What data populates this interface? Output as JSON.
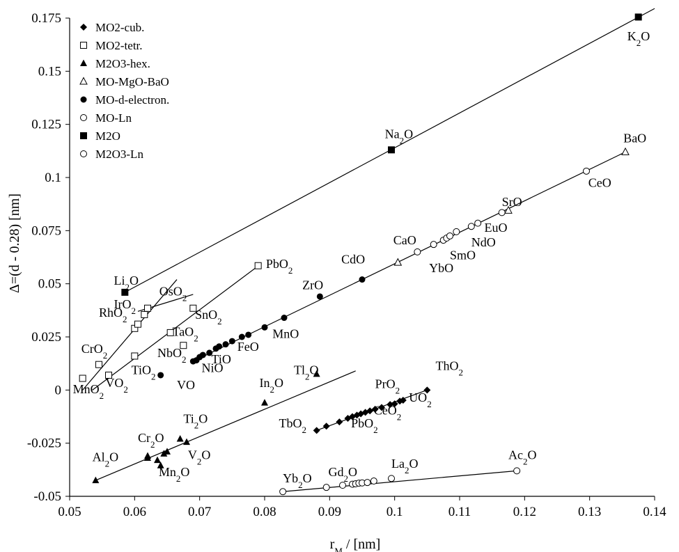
{
  "chart_data": {
    "type": "scatter",
    "xlabel": "r",
    "xlabel_sub": "M",
    "xlabel_tail": " / [nm]",
    "ylabel": "Δ=(d - 0.28)  [nm]",
    "xlim": [
      0.05,
      0.14
    ],
    "ylim": [
      -0.05,
      0.175
    ],
    "xticks": [
      0.05,
      0.06,
      0.07,
      0.08,
      0.09,
      0.1,
      0.11,
      0.12,
      0.13,
      0.14
    ],
    "xtick_labels": [
      "0.05",
      "0.06",
      "0.07",
      "0.08",
      "0.09",
      "0.1",
      "0.11",
      "0.12",
      "0.13",
      "0.14"
    ],
    "yticks": [
      -0.05,
      -0.025,
      0,
      0.025,
      0.05,
      0.075,
      0.1,
      0.125,
      0.15,
      0.175
    ],
    "ytick_labels": [
      "-0.05",
      "-0.025",
      "0",
      "0.025",
      "0.05",
      "0.075",
      "0.1",
      "0.125",
      "0.15",
      "0.175"
    ],
    "grid": false,
    "legend_position": "top-left",
    "series": [
      {
        "name": "MO2-cub.",
        "marker": "diamond",
        "points": [
          {
            "x": 0.088,
            "y": -0.019
          },
          {
            "x": 0.0895,
            "y": -0.017
          },
          {
            "x": 0.0915,
            "y": -0.015
          },
          {
            "x": 0.0928,
            "y": -0.0133
          },
          {
            "x": 0.0935,
            "y": -0.0125
          },
          {
            "x": 0.0942,
            "y": -0.0118
          },
          {
            "x": 0.0948,
            "y": -0.0112
          },
          {
            "x": 0.0955,
            "y": -0.0105
          },
          {
            "x": 0.0962,
            "y": -0.0098
          },
          {
            "x": 0.097,
            "y": -0.009
          },
          {
            "x": 0.098,
            "y": -0.0082
          },
          {
            "x": 0.0993,
            "y": -0.0068
          },
          {
            "x": 0.1,
            "y": -0.0065
          },
          {
            "x": 0.1008,
            "y": -0.0052
          },
          {
            "x": 0.1013,
            "y": -0.0048
          },
          {
            "x": 0.105,
            "y": 0.0
          }
        ],
        "line": [
          [
            0.088,
            -0.019
          ],
          [
            0.105,
            0.0
          ]
        ]
      },
      {
        "name": "MO2-tetr.",
        "marker": "open-square",
        "points": [
          {
            "x": 0.052,
            "y": 0.0055
          },
          {
            "x": 0.0545,
            "y": 0.012
          },
          {
            "x": 0.056,
            "y": 0.007
          },
          {
            "x": 0.06,
            "y": 0.016
          },
          {
            "x": 0.06,
            "y": 0.029
          },
          {
            "x": 0.0605,
            "y": 0.031
          },
          {
            "x": 0.0615,
            "y": 0.0355
          },
          {
            "x": 0.062,
            "y": 0.0385
          },
          {
            "x": 0.0655,
            "y": 0.027
          },
          {
            "x": 0.0675,
            "y": 0.021
          },
          {
            "x": 0.069,
            "y": 0.0385
          },
          {
            "x": 0.079,
            "y": 0.0585
          }
        ],
        "lines": [
          [
            [
              0.052,
              0.0
            ],
            [
              0.0665,
              0.052
            ]
          ],
          [
            [
              0.0535,
              0.0
            ],
            [
              0.0795,
              0.0595
            ]
          ],
          [
            [
              0.0605,
              0.037
            ],
            [
              0.069,
              0.045
            ]
          ]
        ]
      },
      {
        "name": "M2O3-hex.",
        "marker": "filled-triangle",
        "points": [
          {
            "x": 0.054,
            "y": -0.0425
          },
          {
            "x": 0.062,
            "y": -0.031
          },
          {
            "x": 0.062,
            "y": -0.032
          },
          {
            "x": 0.0635,
            "y": -0.033
          },
          {
            "x": 0.064,
            "y": -0.0355
          },
          {
            "x": 0.0645,
            "y": -0.03
          },
          {
            "x": 0.065,
            "y": -0.029
          },
          {
            "x": 0.067,
            "y": -0.023
          },
          {
            "x": 0.068,
            "y": -0.0245
          },
          {
            "x": 0.08,
            "y": -0.006
          },
          {
            "x": 0.088,
            "y": 0.0075
          }
        ],
        "line": [
          [
            0.054,
            -0.0425
          ],
          [
            0.094,
            0.009
          ]
        ]
      },
      {
        "name": "MO-MgO-BaO",
        "marker": "open-triangle",
        "points": [
          {
            "x": 0.1005,
            "y": 0.06
          },
          {
            "x": 0.1175,
            "y": 0.0845
          },
          {
            "x": 0.1355,
            "y": 0.112
          }
        ]
      },
      {
        "name": "MO-d-electron.",
        "marker": "filled-circle",
        "points": [
          {
            "x": 0.064,
            "y": 0.007
          },
          {
            "x": 0.069,
            "y": 0.0135
          },
          {
            "x": 0.0695,
            "y": 0.014
          },
          {
            "x": 0.07,
            "y": 0.0155
          },
          {
            "x": 0.0705,
            "y": 0.0165
          },
          {
            "x": 0.0715,
            "y": 0.0175
          },
          {
            "x": 0.0725,
            "y": 0.0195
          },
          {
            "x": 0.073,
            "y": 0.0205
          },
          {
            "x": 0.074,
            "y": 0.0215
          },
          {
            "x": 0.075,
            "y": 0.023
          },
          {
            "x": 0.0765,
            "y": 0.025
          },
          {
            "x": 0.0775,
            "y": 0.026
          },
          {
            "x": 0.08,
            "y": 0.0295
          },
          {
            "x": 0.083,
            "y": 0.034
          },
          {
            "x": 0.0885,
            "y": 0.044
          },
          {
            "x": 0.095,
            "y": 0.052
          }
        ]
      },
      {
        "name": "MO-Ln",
        "marker": "open-circle",
        "points": [
          {
            "x": 0.1035,
            "y": 0.065
          },
          {
            "x": 0.106,
            "y": 0.0685
          },
          {
            "x": 0.1075,
            "y": 0.0705
          },
          {
            "x": 0.108,
            "y": 0.0715
          },
          {
            "x": 0.1085,
            "y": 0.0725
          },
          {
            "x": 0.1095,
            "y": 0.0745
          },
          {
            "x": 0.1118,
            "y": 0.077
          },
          {
            "x": 0.1128,
            "y": 0.0785
          },
          {
            "x": 0.1165,
            "y": 0.0835
          },
          {
            "x": 0.1295,
            "y": 0.103
          }
        ],
        "line": [
          [
            0.069,
            0.0135
          ],
          [
            0.1355,
            0.112
          ]
        ]
      },
      {
        "name": "M2O",
        "marker": "filled-square",
        "points": [
          {
            "x": 0.0585,
            "y": 0.046
          },
          {
            "x": 0.0995,
            "y": 0.113
          },
          {
            "x": 0.1375,
            "y": 0.1755
          }
        ],
        "line": [
          [
            0.0585,
            0.046
          ],
          [
            0.14,
            0.1795
          ]
        ]
      },
      {
        "name": "M2O3-Ln",
        "marker": "open-circle",
        "points": [
          {
            "x": 0.0828,
            "y": -0.0478
          },
          {
            "x": 0.0895,
            "y": -0.0458
          },
          {
            "x": 0.092,
            "y": -0.0448
          },
          {
            "x": 0.0935,
            "y": -0.0443
          },
          {
            "x": 0.094,
            "y": -0.0441
          },
          {
            "x": 0.0945,
            "y": -0.0438
          },
          {
            "x": 0.095,
            "y": -0.0437
          },
          {
            "x": 0.0958,
            "y": -0.0435
          },
          {
            "x": 0.0968,
            "y": -0.0428
          },
          {
            "x": 0.0995,
            "y": -0.0416
          },
          {
            "x": 0.1188,
            "y": -0.038
          }
        ],
        "line": [
          [
            0.0828,
            -0.0478
          ],
          [
            0.1188,
            -0.038
          ]
        ]
      }
    ],
    "annotations": [
      {
        "x": 0.1358,
        "y": 0.1645,
        "main": "K",
        "sub": "2",
        "tail": "O"
      },
      {
        "x": 0.0985,
        "y": 0.1185,
        "main": "Na",
        "sub": "2",
        "tail": "O"
      },
      {
        "x": 0.1352,
        "y": 0.1165,
        "main": "BaO",
        "sub": "",
        "tail": ""
      },
      {
        "x": 0.1298,
        "y": 0.0955,
        "main": "CeO",
        "sub": "",
        "tail": ""
      },
      {
        "x": 0.1165,
        "y": 0.0865,
        "main": "SrO",
        "sub": "",
        "tail": ""
      },
      {
        "x": 0.1138,
        "y": 0.0745,
        "main": "EuO",
        "sub": "",
        "tail": ""
      },
      {
        "x": 0.1118,
        "y": 0.0675,
        "main": "NdO",
        "sub": "",
        "tail": ""
      },
      {
        "x": 0.1085,
        "y": 0.0615,
        "main": "SmO",
        "sub": "",
        "tail": ""
      },
      {
        "x": 0.1053,
        "y": 0.0555,
        "main": "YbO",
        "sub": "",
        "tail": ""
      },
      {
        "x": 0.0998,
        "y": 0.0685,
        "main": "CaO",
        "sub": "",
        "tail": ""
      },
      {
        "x": 0.0918,
        "y": 0.0595,
        "main": "CdO",
        "sub": "",
        "tail": ""
      },
      {
        "x": 0.0858,
        "y": 0.0475,
        "main": "ZrO",
        "sub": "",
        "tail": ""
      },
      {
        "x": 0.0812,
        "y": 0.0245,
        "main": "MnO",
        "sub": "",
        "tail": ""
      },
      {
        "x": 0.0758,
        "y": 0.0185,
        "main": "FeO",
        "sub": "",
        "tail": ""
      },
      {
        "x": 0.0718,
        "y": 0.0125,
        "main": "TiO",
        "sub": "",
        "tail": ""
      },
      {
        "x": 0.0703,
        "y": 0.0085,
        "main": "NiO",
        "sub": "",
        "tail": ""
      },
      {
        "x": 0.0665,
        "y": 0.0005,
        "main": "VO",
        "sub": "",
        "tail": ""
      },
      {
        "x": 0.0845,
        "y": 0.0075,
        "main": "Tl",
        "sub": "2",
        "tail": "O"
      },
      {
        "x": 0.0792,
        "y": 0.0015,
        "main": "In",
        "sub": "2",
        "tail": "O"
      },
      {
        "x": 0.1063,
        "y": 0.0095,
        "main": "ThO",
        "sub": "2",
        "tail": ""
      },
      {
        "x": 0.097,
        "y": 0.001,
        "main": "PrO",
        "sub": "2",
        "tail": ""
      },
      {
        "x": 0.1022,
        "y": -0.0055,
        "main": "UO",
        "sub": "2",
        "tail": ""
      },
      {
        "x": 0.0968,
        "y": -0.0115,
        "main": "CeO",
        "sub": "2",
        "tail": ""
      },
      {
        "x": 0.0933,
        "y": -0.0175,
        "main": "PbO",
        "sub": "2",
        "tail": ""
      },
      {
        "x": 0.0822,
        "y": -0.0175,
        "main": "TbO",
        "sub": "2",
        "tail": ""
      },
      {
        "x": 0.0802,
        "y": 0.0575,
        "main": "PbO",
        "sub": "2",
        "tail": ""
      },
      {
        "x": 0.0638,
        "y": 0.0445,
        "main": "OsO",
        "sub": "2",
        "tail": ""
      },
      {
        "x": 0.0568,
        "y": 0.0385,
        "main": "IrO",
        "sub": "2",
        "tail": ""
      },
      {
        "x": 0.0545,
        "y": 0.0345,
        "main": "RhO",
        "sub": "2",
        "tail": ""
      },
      {
        "x": 0.0568,
        "y": 0.0495,
        "main": "Li",
        "sub": "2",
        "tail": "O"
      },
      {
        "x": 0.0693,
        "y": 0.0335,
        "main": "SnO",
        "sub": "2",
        "tail": ""
      },
      {
        "x": 0.0658,
        "y": 0.0255,
        "main": "TaO",
        "sub": "2",
        "tail": ""
      },
      {
        "x": 0.0635,
        "y": 0.0155,
        "main": "NbO",
        "sub": "2",
        "tail": ""
      },
      {
        "x": 0.0518,
        "y": 0.0175,
        "main": "CrO",
        "sub": "2",
        "tail": ""
      },
      {
        "x": 0.0595,
        "y": 0.0075,
        "main": "TiO",
        "sub": "2",
        "tail": ""
      },
      {
        "x": 0.0555,
        "y": 0.0015,
        "main": "VO",
        "sub": "2",
        "tail": ""
      },
      {
        "x": 0.0505,
        "y": -0.0015,
        "main": "MnO",
        "sub": "2",
        "tail": ""
      },
      {
        "x": 0.0675,
        "y": -0.0155,
        "main": "Ti",
        "sub": "2",
        "tail": "O"
      },
      {
        "x": 0.0605,
        "y": -0.0245,
        "main": "Cr",
        "sub": "2",
        "tail": "O"
      },
      {
        "x": 0.0535,
        "y": -0.0335,
        "main": "Al",
        "sub": "2",
        "tail": "O"
      },
      {
        "x": 0.0682,
        "y": -0.0325,
        "main": "V",
        "sub": "2",
        "tail": "O"
      },
      {
        "x": 0.0637,
        "y": -0.0405,
        "main": "Mn",
        "sub": "2",
        "tail": "O"
      },
      {
        "x": 0.0828,
        "y": -0.0435,
        "main": "Yb",
        "sub": "2",
        "tail": "O"
      },
      {
        "x": 0.0898,
        "y": -0.0405,
        "main": "Gd",
        "sub": "2",
        "tail": "O"
      },
      {
        "x": 0.0995,
        "y": -0.0365,
        "main": "La",
        "sub": "2",
        "tail": "O"
      },
      {
        "x": 0.1175,
        "y": -0.0325,
        "main": "Ac",
        "sub": "2",
        "tail": "O"
      }
    ]
  }
}
